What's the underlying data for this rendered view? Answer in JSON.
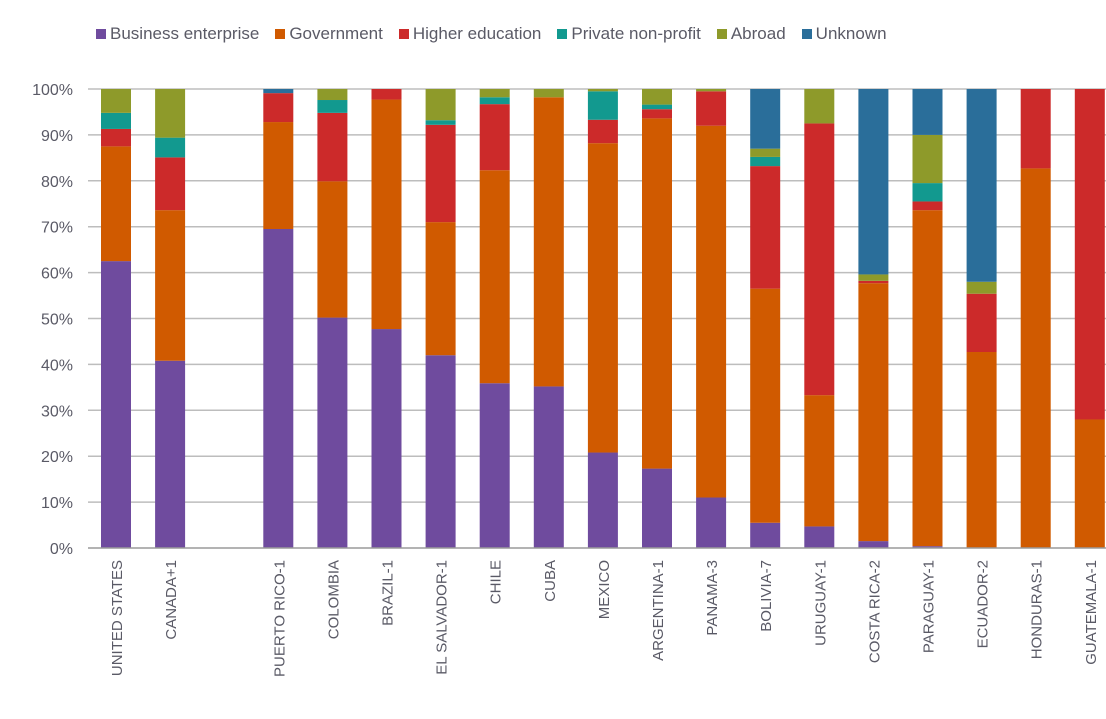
{
  "chart_data": {
    "type": "bar",
    "stacked": true,
    "percent": true,
    "categories": [
      "UNITED STATES",
      "CANADA+1",
      "",
      "PUERTO RICO-1",
      "COLOMBIA",
      "BRAZIL-1",
      "EL SALVADOR-1",
      "CHILE",
      "CUBA",
      "MEXICO",
      "ARGENTINA-1",
      "PANAMA-3",
      "BOLIVIA-7",
      "URUGUAY-1",
      "COSTA RICA-2",
      "PARAGUAY-1",
      "ECUADOR-2",
      "HONDURAS-1",
      "GUATEMALA-1"
    ],
    "series": [
      {
        "name": "Business enterprise",
        "color": "#6f4b9e",
        "values": [
          62.5,
          40.8,
          0,
          69.5,
          50.2,
          47.7,
          42.0,
          35.9,
          35.2,
          20.8,
          17.3,
          11.0,
          5.5,
          4.7,
          1.5,
          0.4,
          0,
          0,
          0
        ]
      },
      {
        "name": "Government",
        "color": "#d05a00",
        "values": [
          25.0,
          32.8,
          0,
          23.3,
          29.7,
          50.0,
          29.0,
          46.4,
          63.0,
          67.4,
          76.3,
          81.0,
          51.0,
          28.6,
          56.2,
          73.2,
          42.7,
          82.7,
          28.0
        ]
      },
      {
        "name": "Higher education",
        "color": "#cc2a2a",
        "values": [
          3.8,
          11.5,
          0,
          6.3,
          14.9,
          2.3,
          21.2,
          14.4,
          0,
          5.1,
          2.0,
          7.5,
          26.7,
          59.2,
          0.5,
          1.9,
          12.7,
          17.3,
          72.0
        ]
      },
      {
        "name": "Private non-profit",
        "color": "#12998f",
        "values": [
          3.5,
          4.3,
          0,
          0,
          2.8,
          0,
          1.0,
          1.5,
          0,
          6.2,
          1.0,
          0,
          2.0,
          0,
          0,
          4.0,
          0,
          0,
          0
        ]
      },
      {
        "name": "Abroad",
        "color": "#8e9a2a",
        "values": [
          5.2,
          10.6,
          0,
          0,
          2.4,
          0,
          6.8,
          1.8,
          1.8,
          0.5,
          3.4,
          0.5,
          1.8,
          7.5,
          1.4,
          10.5,
          2.6,
          0,
          0
        ]
      },
      {
        "name": "Unknown",
        "color": "#2a6e9a",
        "values": [
          0,
          0,
          0,
          0.9,
          0,
          0,
          0,
          0,
          0,
          0,
          0,
          0,
          13.0,
          0,
          40.4,
          10.0,
          42.0,
          0,
          0
        ]
      }
    ],
    "ylim": [
      0,
      100
    ],
    "yticks": [
      "0%",
      "10%",
      "20%",
      "30%",
      "40%",
      "50%",
      "60%",
      "70%",
      "80%",
      "90%",
      "100%"
    ],
    "grid": true,
    "legend_position": "top",
    "title": "",
    "xlabel": "",
    "ylabel": ""
  }
}
